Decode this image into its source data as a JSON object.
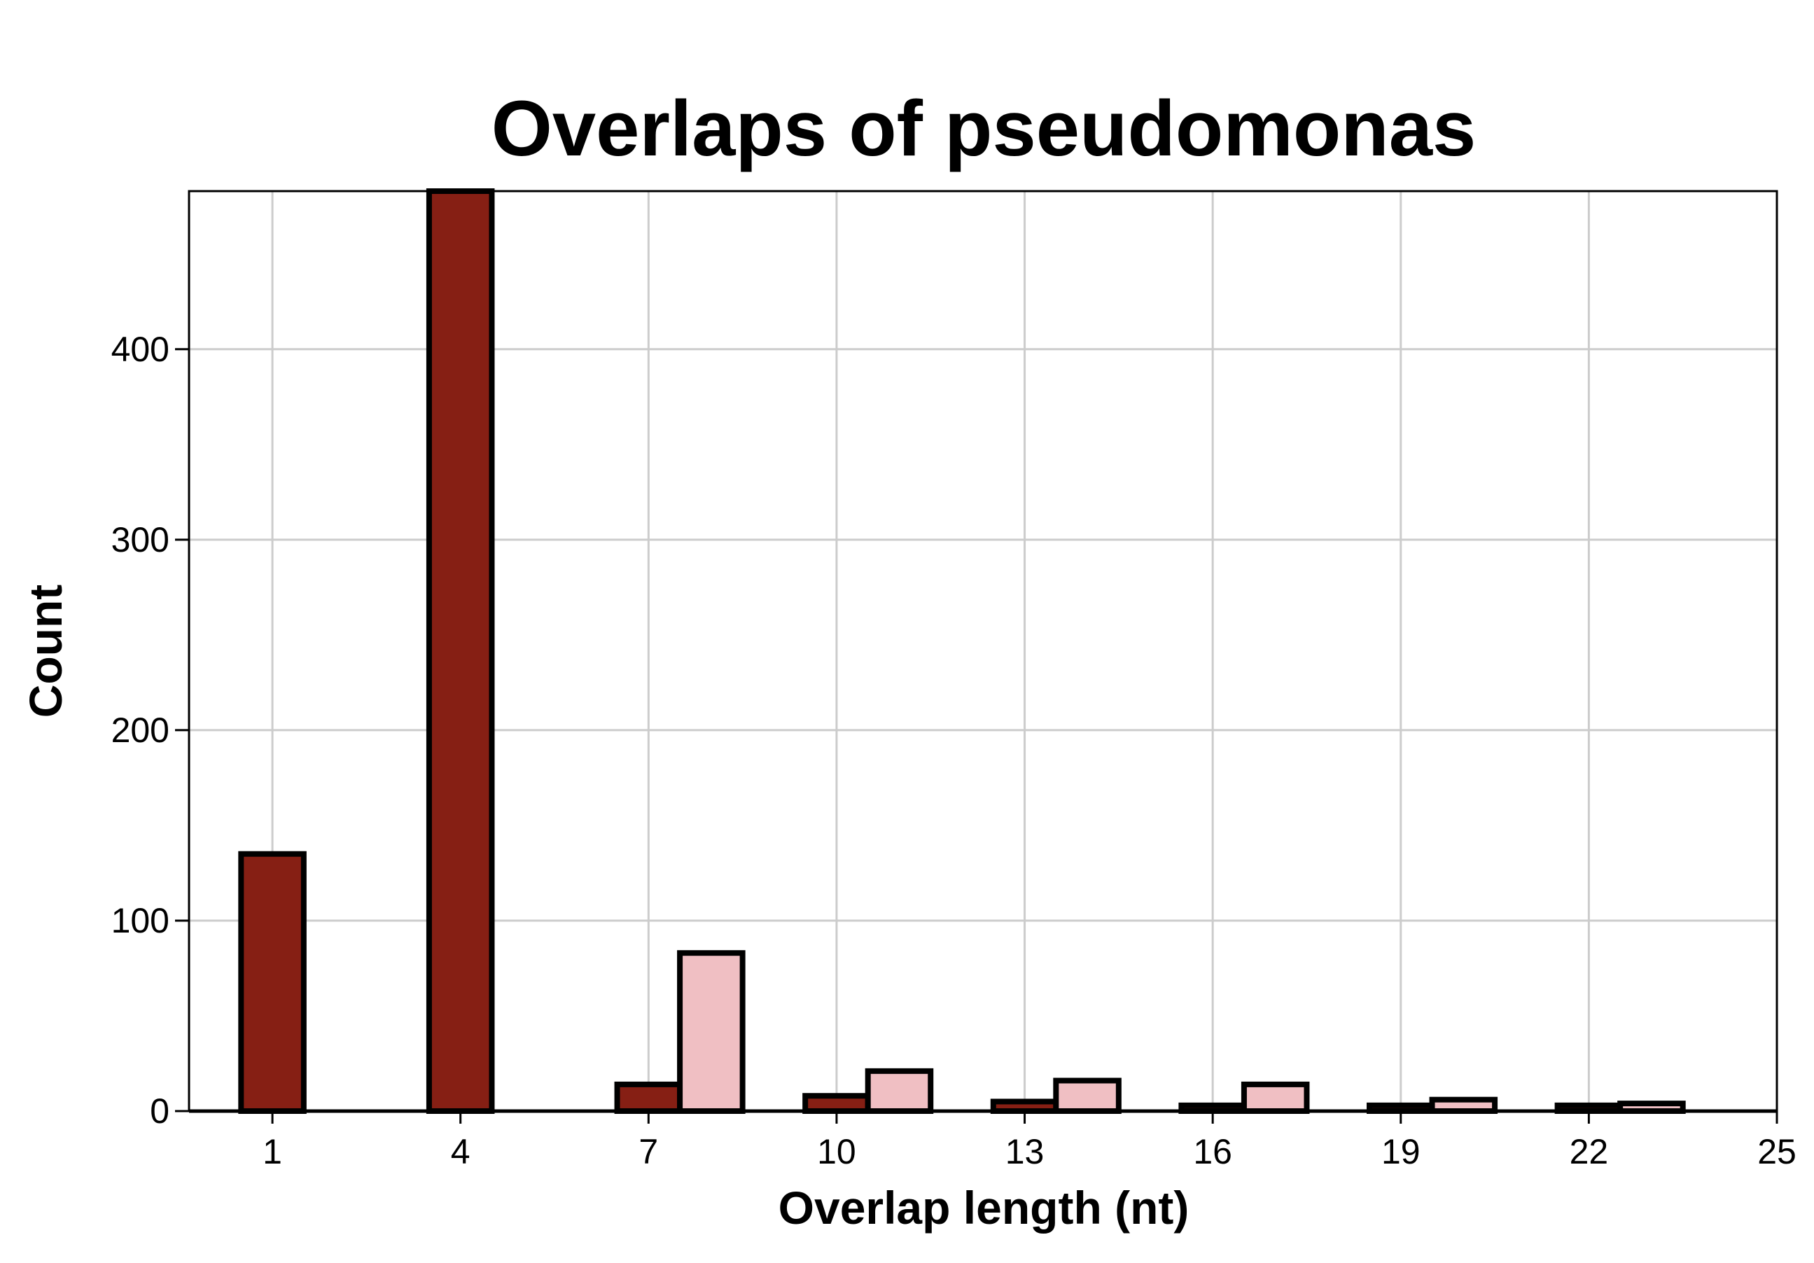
{
  "chart_data": {
    "type": "bar",
    "title": "Overlaps of pseudomonas",
    "xlabel": "Overlap length (nt)",
    "ylabel": "Count",
    "xlim": [
      -0.33,
      25
    ],
    "ylim": [
      0,
      483
    ],
    "xticks": [
      1,
      4,
      7,
      10,
      13,
      16,
      19,
      22,
      25
    ],
    "yticks": [
      0,
      100,
      200,
      300,
      400
    ],
    "grid": true,
    "bin_width": 1,
    "series": [
      {
        "color": "#861F14",
        "bins": [
          {
            "x": 1,
            "value": 135
          },
          {
            "x": 2,
            "value": 0
          },
          {
            "x": 3,
            "value": 0
          },
          {
            "x": 4,
            "value": 483
          },
          {
            "x": 5,
            "value": 0
          },
          {
            "x": 6,
            "value": 0
          },
          {
            "x": 7,
            "value": 14
          },
          {
            "x": 10,
            "value": 8
          },
          {
            "x": 13,
            "value": 5
          },
          {
            "x": 16,
            "value": 3
          },
          {
            "x": 19,
            "value": 3
          },
          {
            "x": 22,
            "value": 3
          }
        ]
      },
      {
        "color": "#F0BFC3",
        "bins": [
          {
            "x": 8,
            "value": 83
          },
          {
            "x": 11,
            "value": 21
          },
          {
            "x": 14,
            "value": 16
          },
          {
            "x": 17,
            "value": 14
          },
          {
            "x": 20,
            "value": 6
          },
          {
            "x": 23,
            "value": 4
          },
          {
            "x": 24,
            "value": 0
          }
        ]
      }
    ]
  }
}
